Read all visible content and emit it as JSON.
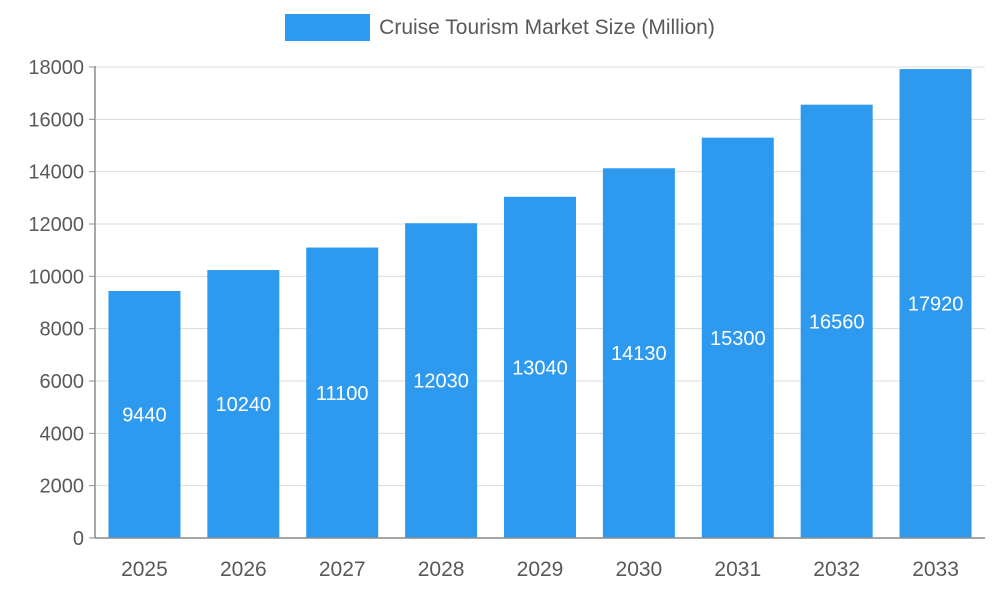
{
  "legend": {
    "label": "Cruise Tourism Market Size (Million)"
  },
  "chart_data": {
    "type": "bar",
    "title": "Cruise Tourism Market Size (Million)",
    "categories": [
      "2025",
      "2026",
      "2027",
      "2028",
      "2029",
      "2030",
      "2031",
      "2032",
      "2033"
    ],
    "values": [
      9440,
      10240,
      11100,
      12030,
      13040,
      14130,
      15300,
      16560,
      17920
    ],
    "xlabel": "",
    "ylabel": "",
    "ylim": [
      0,
      18000
    ],
    "ytick_step": 2000,
    "grid": true,
    "legend_position": "top",
    "value_labels": "inside-center",
    "colors": {
      "bar": "#2E9AEF",
      "bar_label": "#FFFFFF",
      "grid_line": "#DCDCDC",
      "axis_line": "#8C8C8C",
      "tick_text": "#595959"
    }
  }
}
